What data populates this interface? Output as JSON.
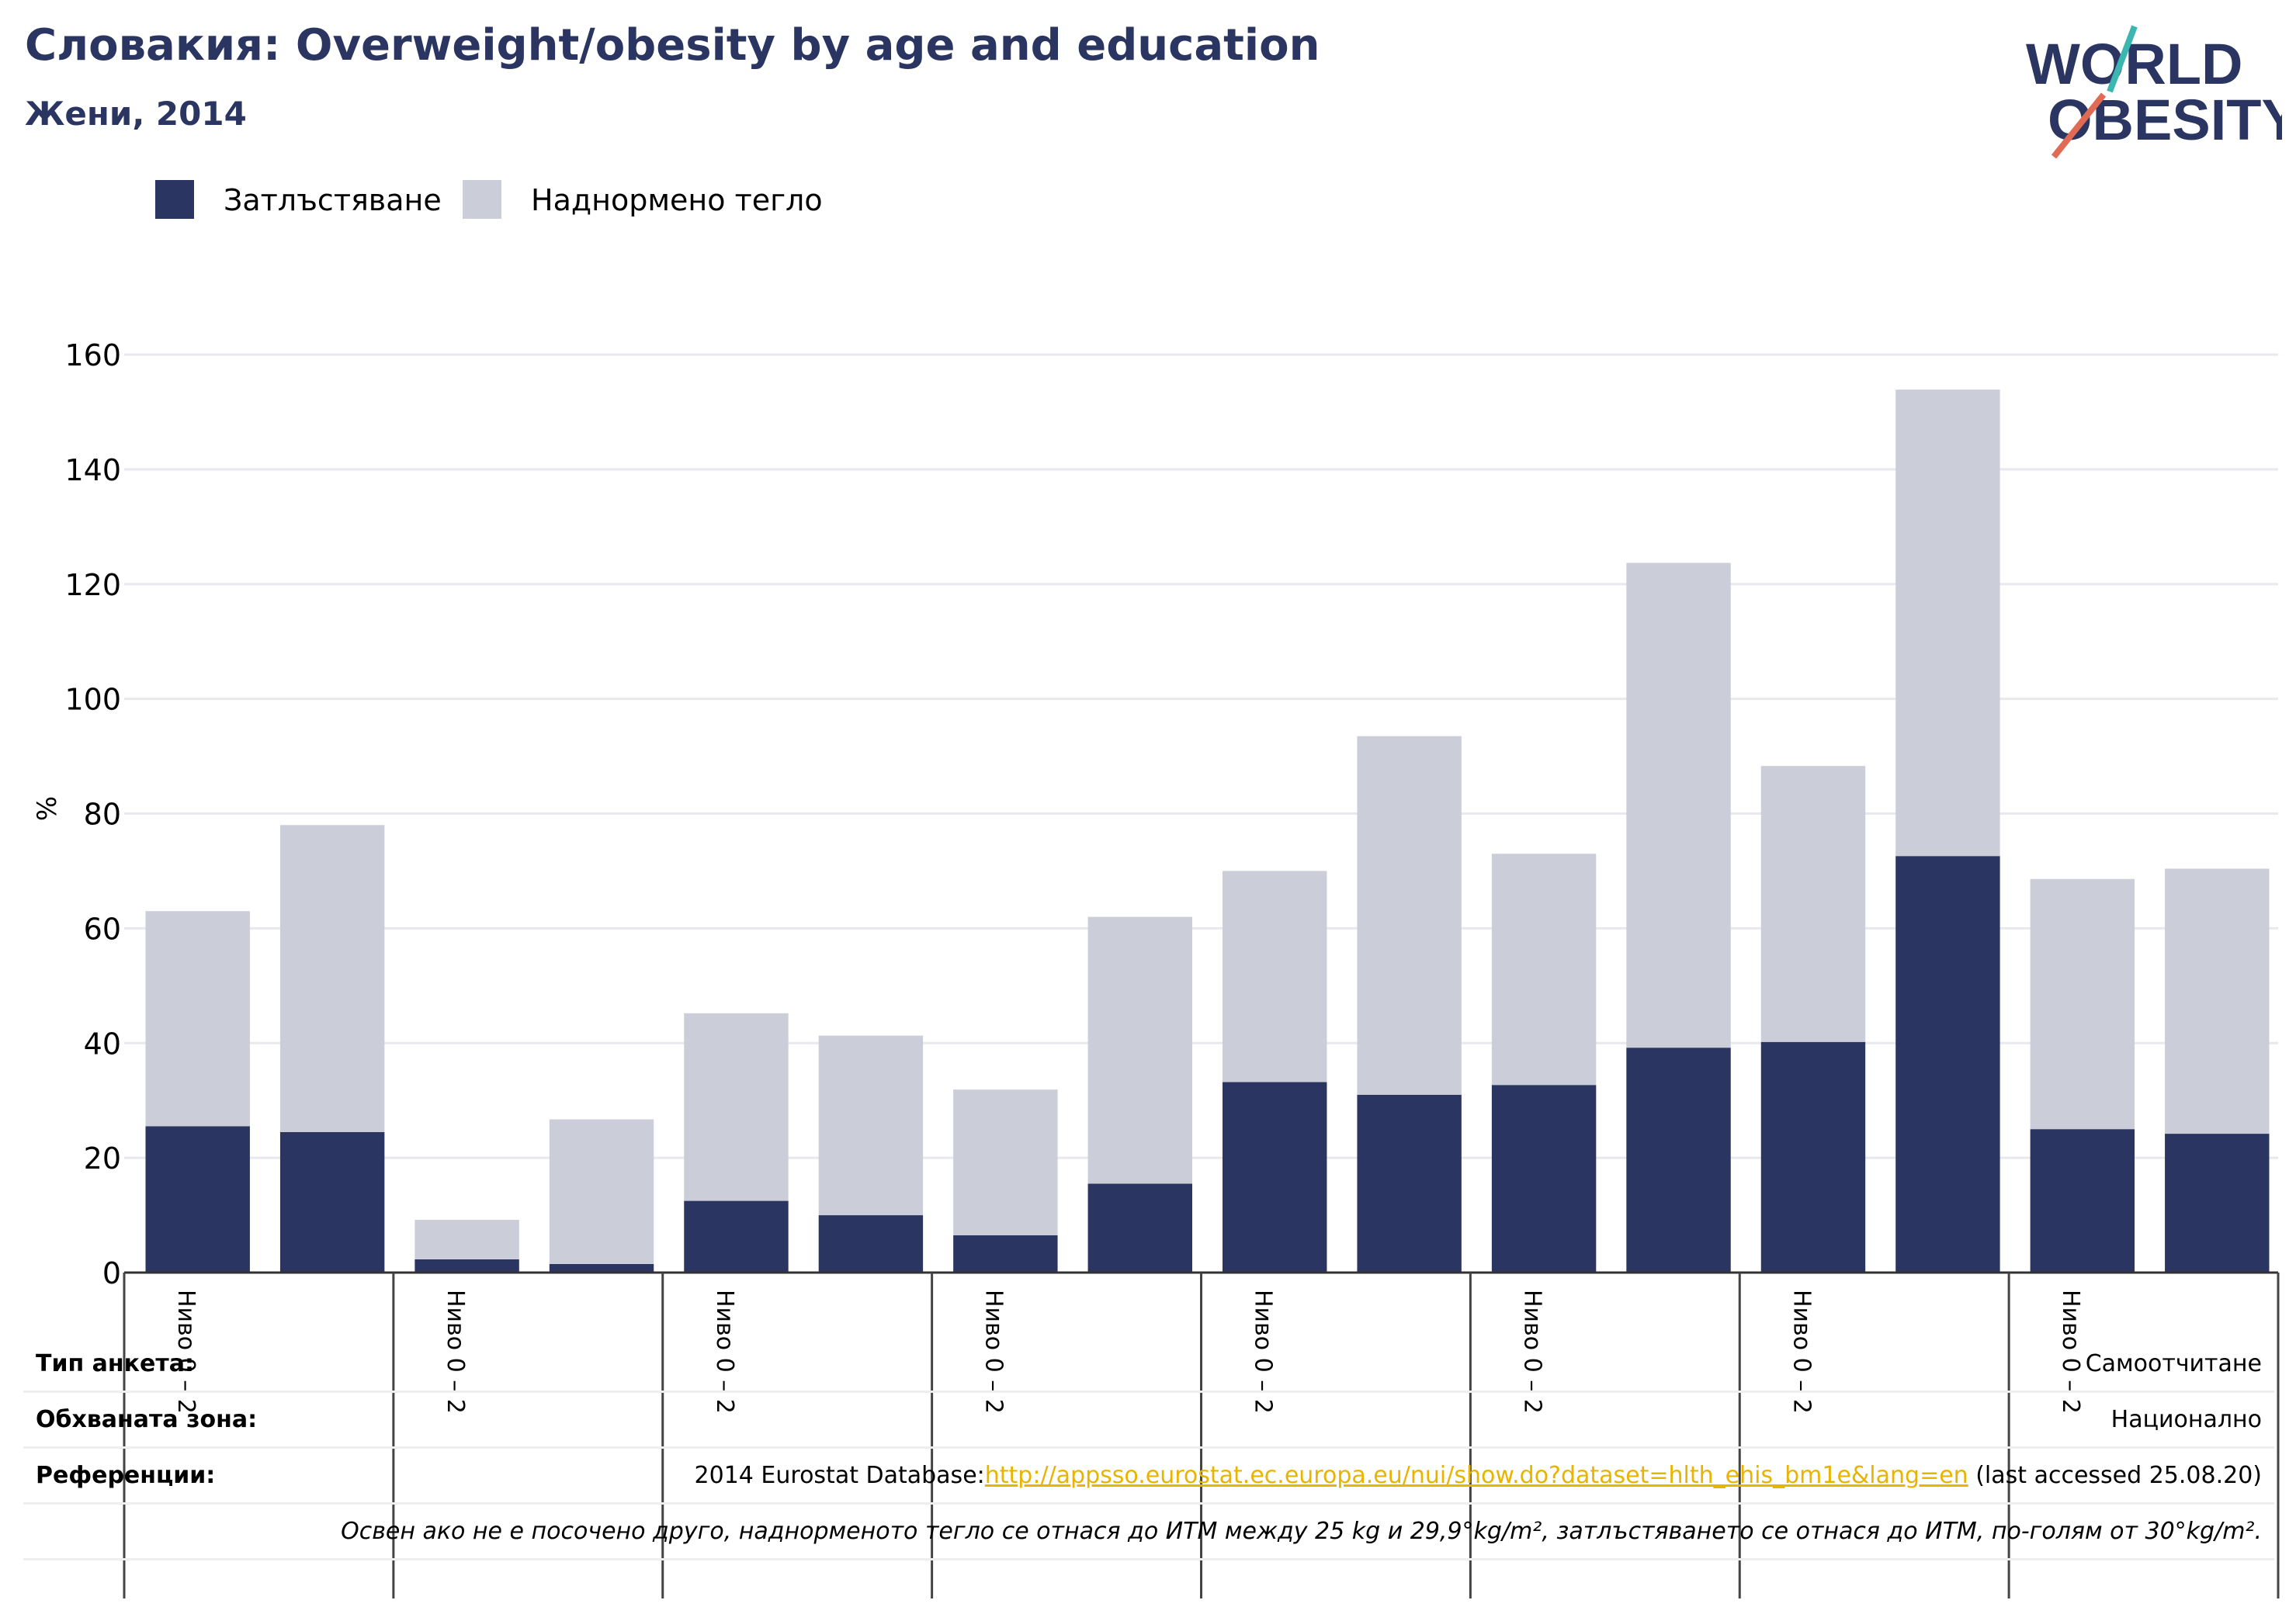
{
  "title": "Словакия: Overweight/obesity by age and education",
  "subtitle": "Жени, 2014",
  "logo": {
    "line1": "WORLD",
    "line2": "OBESITY",
    "icon": "world-obesity-logo"
  },
  "legend": [
    {
      "label": "Затлъстяване",
      "color": "#2b3561"
    },
    {
      "label": "Наднормено тегло",
      "color": "#cbcdd9"
    }
  ],
  "chart_data": {
    "type": "bar",
    "stacked": true,
    "ylabel": "%",
    "ylim": [
      0,
      160
    ],
    "yticks": [
      0,
      20,
      40,
      60,
      80,
      100,
      120,
      140,
      160
    ],
    "grid": true,
    "group_label": "Ниво 0 – 2",
    "group_count": 8,
    "bars_per_group": 2,
    "series": [
      {
        "name": "Затлъстяване",
        "color": "#2b3561",
        "values": [
          25.5,
          24.5,
          2.3,
          1.5,
          12.5,
          10,
          6.5,
          15.5,
          33.2,
          31,
          32.7,
          39.2,
          40.2,
          72.6,
          25,
          24.2
        ]
      },
      {
        "name": "Наднормено тегло",
        "color": "#cbcdd9",
        "values": [
          37.5,
          53.5,
          6.9,
          25.2,
          32.7,
          31.3,
          25.4,
          46.5,
          36.8,
          62.5,
          40.3,
          84.5,
          48.1,
          81.3,
          43.6,
          46.2
        ]
      }
    ]
  },
  "info": {
    "survey_type_label": "Тип анкета:",
    "survey_type_value": "Самоотчитане",
    "area_label": "Обхваната зона:",
    "area_value": "Национално",
    "references_label": "Референции:",
    "references_prefix": "2014 Eurostat Database:",
    "references_link": "http://appsso.eurostat.ec.europa.eu/nui/show.do?dataset=hlth_ehis_bm1e&lang=en",
    "references_suffix": " (last accessed 25.08.20)",
    "note": "Освен ако не е посочено друго, наднорменото тегло се отнася до ИТМ между 25 kg и 29,9°kg/m², затлъстяването се отнася до ИТМ, по-голям от 30°kg/m²."
  }
}
